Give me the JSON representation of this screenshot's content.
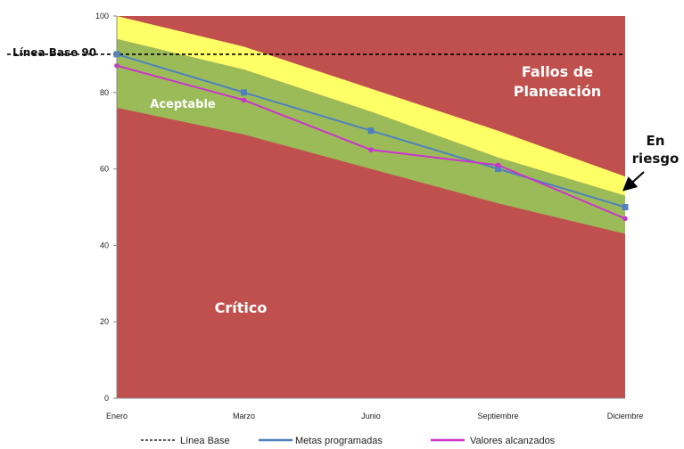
{
  "chart_data": {
    "type": "area",
    "title": "",
    "xlabel": "",
    "ylabel": "",
    "x": [
      "Enero",
      "Marzo",
      "Junio",
      "Septiembre",
      "Diciembre"
    ],
    "yticks": [
      "0",
      "20",
      "40",
      "60",
      "80",
      "100"
    ],
    "ylim": [
      0,
      100
    ],
    "grid": false,
    "legend_position": "bottom",
    "bands": [
      {
        "zone": "critico",
        "label": "Crítico",
        "color": "#c0504d",
        "lower": [
          0,
          0,
          0,
          0,
          0
        ],
        "upper": [
          100,
          100,
          100,
          100,
          100
        ]
      },
      {
        "zone": "aceptable",
        "label": "Aceptable",
        "color": "#9bbb59",
        "lower": [
          76,
          69,
          60,
          51,
          43
        ],
        "upper": [
          94,
          86,
          75,
          63,
          53
        ]
      },
      {
        "zone": "en-riesgo",
        "label": "En riesgo",
        "color": "#ffff66",
        "lower": [
          94,
          86,
          75,
          63,
          53
        ],
        "upper": [
          100,
          92,
          81,
          70,
          58
        ]
      }
    ],
    "baseline": {
      "label": "Línea Base 90",
      "value": 90
    },
    "series": [
      {
        "name": "Metas programadas",
        "color": "#4f81bd",
        "values": [
          90,
          80,
          70,
          60,
          50
        ]
      },
      {
        "name": "Valores alcanzados",
        "color": "#cc33cc",
        "values": [
          87,
          78,
          65,
          61,
          47
        ]
      }
    ],
    "zone_labels": {
      "fallos": [
        "Fallos de",
        "Planeación"
      ],
      "riesgo": [
        "En",
        "riesgo"
      ]
    },
    "legend": [
      {
        "label": "Línea Base",
        "style": "dashed",
        "color": "#000000"
      },
      {
        "label": "Metas programadas",
        "style": "line",
        "color": "#4f81bd"
      },
      {
        "label": "Valores alcanzados",
        "style": "line",
        "color": "#cc33cc"
      }
    ]
  }
}
